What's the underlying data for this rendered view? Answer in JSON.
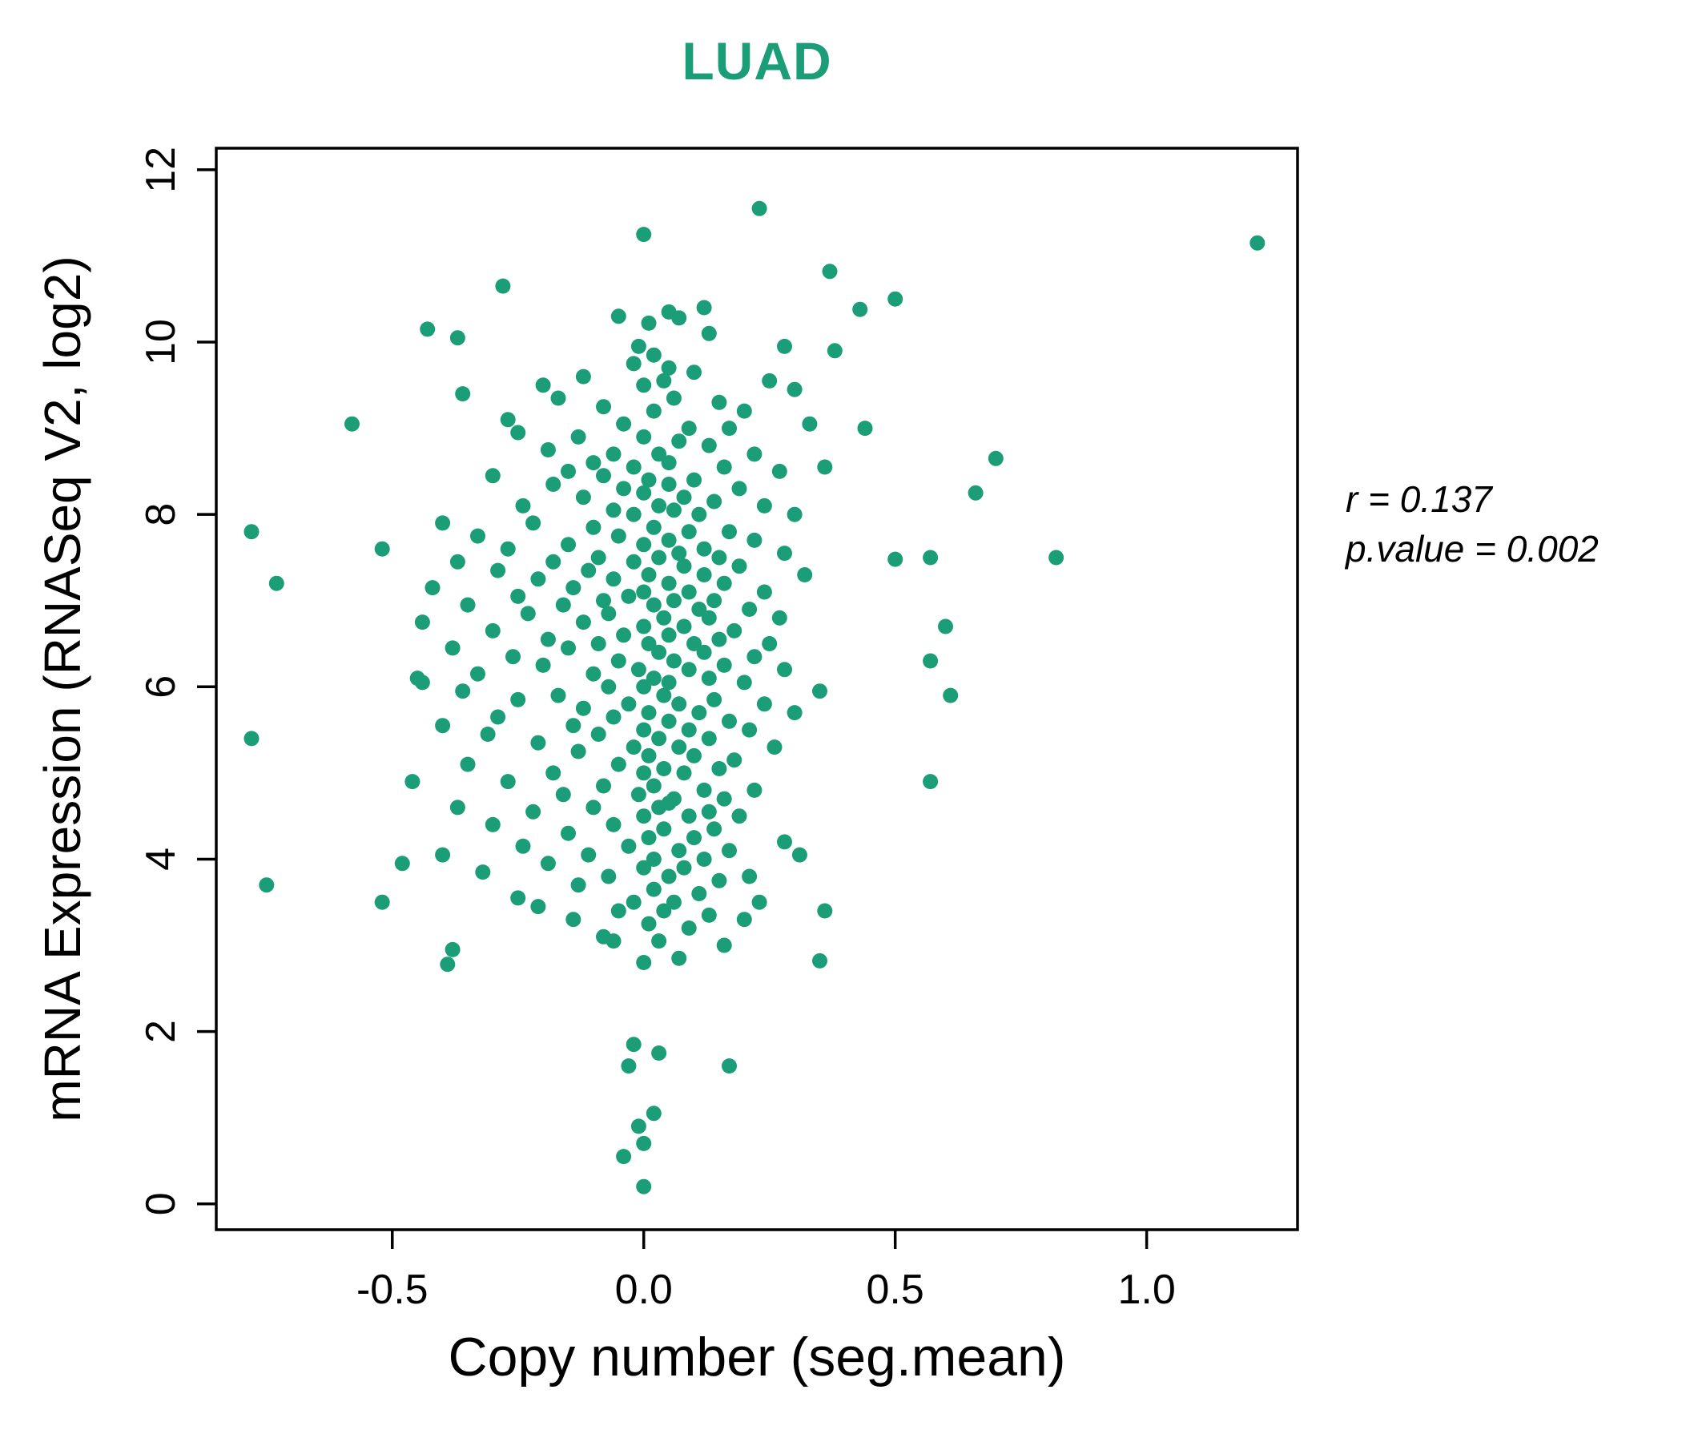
{
  "title": "LUAD",
  "annotation": {
    "line1": "r = 0.137",
    "line2": "p.value = 0.002"
  },
  "chart_data": {
    "type": "scatter",
    "title": "LUAD",
    "xlabel": "Copy number (seg.mean)",
    "ylabel": "mRNA Expression (RNASeq V2, log2)",
    "xlim": [
      -0.85,
      1.3
    ],
    "ylim": [
      -0.3,
      12.25
    ],
    "x_ticks": [
      -0.5,
      0.0,
      0.5,
      1.0
    ],
    "x_tick_labels": [
      "-0.5",
      "0.0",
      "0.5",
      "1.0"
    ],
    "y_ticks": [
      0,
      2,
      4,
      6,
      8,
      10,
      12
    ],
    "y_tick_labels": [
      "0",
      "2",
      "4",
      "6",
      "8",
      "10",
      "12"
    ],
    "grid": false,
    "legend": "none",
    "point_color": "#1B9E77",
    "title_color": "#1B9E77",
    "stats": {
      "r": 0.137,
      "p_value": 0.002
    },
    "points": [
      [
        0.23,
        11.55
      ],
      [
        0.0,
        11.25
      ],
      [
        1.22,
        11.15
      ],
      [
        0.37,
        10.82
      ],
      [
        -0.28,
        10.65
      ],
      [
        0.5,
        10.5
      ],
      [
        0.43,
        10.38
      ],
      [
        0.12,
        10.4
      ],
      [
        0.05,
        10.35
      ],
      [
        -0.05,
        10.3
      ],
      [
        0.07,
        10.28
      ],
      [
        -0.43,
        10.15
      ],
      [
        -0.37,
        10.05
      ],
      [
        0.01,
        10.22
      ],
      [
        0.13,
        10.1
      ],
      [
        0.28,
        9.95
      ],
      [
        0.38,
        9.9
      ],
      [
        -0.01,
        9.95
      ],
      [
        0.02,
        9.85
      ],
      [
        -0.02,
        9.75
      ],
      [
        0.05,
        9.7
      ],
      [
        0.1,
        9.65
      ],
      [
        -0.12,
        9.6
      ],
      [
        0.04,
        9.55
      ],
      [
        0.25,
        9.55
      ],
      [
        -0.2,
        9.5
      ],
      [
        0.0,
        9.5
      ],
      [
        0.3,
        9.45
      ],
      [
        -0.36,
        9.4
      ],
      [
        -0.17,
        9.35
      ],
      [
        0.06,
        9.35
      ],
      [
        0.15,
        9.3
      ],
      [
        -0.08,
        9.25
      ],
      [
        0.02,
        9.2
      ],
      [
        0.2,
        9.2
      ],
      [
        -0.27,
        9.1
      ],
      [
        -0.58,
        9.05
      ],
      [
        -0.04,
        9.05
      ],
      [
        0.09,
        9.0
      ],
      [
        0.17,
        9.0
      ],
      [
        0.33,
        9.05
      ],
      [
        0.44,
        9.0
      ],
      [
        -0.25,
        8.95
      ],
      [
        -0.13,
        8.9
      ],
      [
        0.0,
        8.9
      ],
      [
        0.07,
        8.85
      ],
      [
        0.13,
        8.8
      ],
      [
        -0.19,
        8.75
      ],
      [
        -0.06,
        8.7
      ],
      [
        0.03,
        8.7
      ],
      [
        0.22,
        8.7
      ],
      [
        0.7,
        8.65
      ],
      [
        -0.1,
        8.6
      ],
      [
        0.05,
        8.6
      ],
      [
        0.16,
        8.55
      ],
      [
        -0.02,
        8.55
      ],
      [
        0.27,
        8.5
      ],
      [
        -0.15,
        8.5
      ],
      [
        0.36,
        8.55
      ],
      [
        -0.3,
        8.45
      ],
      [
        -0.08,
        8.45
      ],
      [
        0.01,
        8.4
      ],
      [
        0.1,
        8.4
      ],
      [
        -0.18,
        8.35
      ],
      [
        0.05,
        8.35
      ],
      [
        0.19,
        8.3
      ],
      [
        0.66,
        8.25
      ],
      [
        -0.04,
        8.3
      ],
      [
        0.0,
        8.25
      ],
      [
        0.08,
        8.2
      ],
      [
        -0.12,
        8.2
      ],
      [
        0.14,
        8.15
      ],
      [
        -0.24,
        8.1
      ],
      [
        0.03,
        8.1
      ],
      [
        0.24,
        8.1
      ],
      [
        -0.06,
        8.05
      ],
      [
        0.06,
        8.05
      ],
      [
        0.3,
        8.0
      ],
      [
        -0.02,
        8.0
      ],
      [
        0.11,
        8.0
      ],
      [
        -0.78,
        7.8
      ],
      [
        -0.4,
        7.9
      ],
      [
        -0.22,
        7.9
      ],
      [
        -0.1,
        7.85
      ],
      [
        0.02,
        7.85
      ],
      [
        0.09,
        7.8
      ],
      [
        0.17,
        7.8
      ],
      [
        -0.33,
        7.75
      ],
      [
        -0.05,
        7.75
      ],
      [
        0.05,
        7.7
      ],
      [
        0.22,
        7.7
      ],
      [
        -0.15,
        7.65
      ],
      [
        0.0,
        7.65
      ],
      [
        0.12,
        7.6
      ],
      [
        -0.52,
        7.6
      ],
      [
        -0.27,
        7.6
      ],
      [
        0.07,
        7.55
      ],
      [
        0.28,
        7.55
      ],
      [
        -0.09,
        7.5
      ],
      [
        0.82,
        7.5
      ],
      [
        0.57,
        7.5
      ],
      [
        0.5,
        7.48
      ],
      [
        0.03,
        7.5
      ],
      [
        0.15,
        7.5
      ],
      [
        -0.73,
        7.2
      ],
      [
        -0.37,
        7.45
      ],
      [
        -0.18,
        7.45
      ],
      [
        -0.02,
        7.45
      ],
      [
        0.08,
        7.4
      ],
      [
        0.19,
        7.4
      ],
      [
        -0.29,
        7.35
      ],
      [
        -0.11,
        7.35
      ],
      [
        0.01,
        7.3
      ],
      [
        0.12,
        7.3
      ],
      [
        0.32,
        7.3
      ],
      [
        -0.21,
        7.25
      ],
      [
        -0.06,
        7.25
      ],
      [
        0.05,
        7.2
      ],
      [
        0.16,
        7.2
      ],
      [
        -0.42,
        7.15
      ],
      [
        -0.14,
        7.15
      ],
      [
        0.0,
        7.1
      ],
      [
        0.09,
        7.1
      ],
      [
        0.24,
        7.1
      ],
      [
        -0.25,
        7.05
      ],
      [
        -0.03,
        7.05
      ],
      [
        0.06,
        7.0
      ],
      [
        0.14,
        7.0
      ],
      [
        -0.08,
        7.0
      ],
      [
        -0.35,
        6.95
      ],
      [
        -0.16,
        6.95
      ],
      [
        0.02,
        6.95
      ],
      [
        0.11,
        6.9
      ],
      [
        0.21,
        6.9
      ],
      [
        -0.23,
        6.85
      ],
      [
        -0.07,
        6.85
      ],
      [
        0.04,
        6.8
      ],
      [
        0.13,
        6.8
      ],
      [
        0.27,
        6.8
      ],
      [
        -0.44,
        6.75
      ],
      [
        -0.12,
        6.75
      ],
      [
        0.0,
        6.7
      ],
      [
        0.6,
        6.7
      ],
      [
        0.08,
        6.7
      ],
      [
        0.18,
        6.65
      ],
      [
        -0.3,
        6.65
      ],
      [
        -0.04,
        6.6
      ],
      [
        0.05,
        6.6
      ],
      [
        0.15,
        6.55
      ],
      [
        -0.19,
        6.55
      ],
      [
        0.01,
        6.5
      ],
      [
        0.1,
        6.5
      ],
      [
        0.25,
        6.5
      ],
      [
        -0.09,
        6.5
      ],
      [
        -0.38,
        6.45
      ],
      [
        -0.15,
        6.45
      ],
      [
        0.03,
        6.4
      ],
      [
        0.12,
        6.4
      ],
      [
        0.22,
        6.35
      ],
      [
        -0.26,
        6.35
      ],
      [
        -0.05,
        6.3
      ],
      [
        0.06,
        6.3
      ],
      [
        0.57,
        6.3
      ],
      [
        0.16,
        6.25
      ],
      [
        -0.2,
        6.25
      ],
      [
        -0.01,
        6.2
      ],
      [
        0.09,
        6.2
      ],
      [
        0.28,
        6.2
      ],
      [
        -0.33,
        6.15
      ],
      [
        -0.1,
        6.15
      ],
      [
        0.02,
        6.1
      ],
      [
        0.13,
        6.1
      ],
      [
        -0.45,
        6.1
      ],
      [
        -0.44,
        6.05
      ],
      [
        0.05,
        6.05
      ],
      [
        0.2,
        6.05
      ],
      [
        -0.07,
        6.0
      ],
      [
        0.0,
        6.0
      ],
      [
        0.35,
        5.95
      ],
      [
        0.61,
        5.9
      ],
      [
        -0.36,
        5.95
      ],
      [
        -0.17,
        5.9
      ],
      [
        0.04,
        5.9
      ],
      [
        0.14,
        5.85
      ],
      [
        -0.25,
        5.85
      ],
      [
        -0.03,
        5.8
      ],
      [
        0.07,
        5.8
      ],
      [
        0.24,
        5.8
      ],
      [
        -0.12,
        5.75
      ],
      [
        0.01,
        5.7
      ],
      [
        0.11,
        5.7
      ],
      [
        0.3,
        5.7
      ],
      [
        -0.29,
        5.65
      ],
      [
        -0.06,
        5.65
      ],
      [
        0.05,
        5.6
      ],
      [
        0.17,
        5.6
      ],
      [
        -0.4,
        5.55
      ],
      [
        -0.14,
        5.55
      ],
      [
        0.0,
        5.5
      ],
      [
        0.09,
        5.5
      ],
      [
        0.21,
        5.5
      ],
      [
        -0.78,
        5.4
      ],
      [
        -0.31,
        5.45
      ],
      [
        -0.09,
        5.45
      ],
      [
        0.03,
        5.4
      ],
      [
        0.13,
        5.4
      ],
      [
        -0.21,
        5.35
      ],
      [
        -0.02,
        5.3
      ],
      [
        0.07,
        5.3
      ],
      [
        0.26,
        5.3
      ],
      [
        -0.13,
        5.25
      ],
      [
        0.01,
        5.2
      ],
      [
        0.1,
        5.2
      ],
      [
        0.18,
        5.15
      ],
      [
        -0.35,
        5.1
      ],
      [
        -0.05,
        5.1
      ],
      [
        0.04,
        5.05
      ],
      [
        0.15,
        5.05
      ],
      [
        -0.18,
        5.0
      ],
      [
        0.0,
        5.0
      ],
      [
        0.08,
        5.0
      ],
      [
        -0.46,
        4.9
      ],
      [
        0.57,
        4.9
      ],
      [
        -0.27,
        4.9
      ],
      [
        -0.08,
        4.85
      ],
      [
        0.02,
        4.85
      ],
      [
        0.12,
        4.8
      ],
      [
        0.22,
        4.8
      ],
      [
        -0.16,
        4.75
      ],
      [
        -0.01,
        4.75
      ],
      [
        0.06,
        4.7
      ],
      [
        0.16,
        4.7
      ],
      [
        0.05,
        4.65
      ],
      [
        -0.37,
        4.6
      ],
      [
        -0.1,
        4.6
      ],
      [
        0.03,
        4.6
      ],
      [
        0.13,
        4.55
      ],
      [
        -0.22,
        4.55
      ],
      [
        0.0,
        4.5
      ],
      [
        0.09,
        4.5
      ],
      [
        0.19,
        4.5
      ],
      [
        -0.3,
        4.4
      ],
      [
        -0.06,
        4.4
      ],
      [
        0.04,
        4.35
      ],
      [
        0.14,
        4.35
      ],
      [
        -0.15,
        4.3
      ],
      [
        0.01,
        4.25
      ],
      [
        0.1,
        4.25
      ],
      [
        0.28,
        4.2
      ],
      [
        -0.24,
        4.15
      ],
      [
        -0.03,
        4.15
      ],
      [
        0.07,
        4.1
      ],
      [
        0.17,
        4.1
      ],
      [
        -0.4,
        4.05
      ],
      [
        -0.11,
        4.05
      ],
      [
        0.02,
        4.0
      ],
      [
        0.12,
        4.0
      ],
      [
        0.31,
        4.05
      ],
      [
        -0.48,
        3.95
      ],
      [
        -0.19,
        3.95
      ],
      [
        0.0,
        3.9
      ],
      [
        0.08,
        3.9
      ],
      [
        -0.32,
        3.85
      ],
      [
        -0.07,
        3.8
      ],
      [
        0.05,
        3.8
      ],
      [
        0.15,
        3.75
      ],
      [
        0.21,
        3.8
      ],
      [
        -0.75,
        3.7
      ],
      [
        -0.13,
        3.7
      ],
      [
        0.02,
        3.65
      ],
      [
        0.11,
        3.6
      ],
      [
        -0.52,
        3.5
      ],
      [
        -0.25,
        3.55
      ],
      [
        -0.02,
        3.5
      ],
      [
        0.06,
        3.5
      ],
      [
        0.23,
        3.5
      ],
      [
        -0.21,
        3.45
      ],
      [
        -0.05,
        3.4
      ],
      [
        0.04,
        3.4
      ],
      [
        0.36,
        3.4
      ],
      [
        0.13,
        3.35
      ],
      [
        -0.14,
        3.3
      ],
      [
        0.2,
        3.3
      ],
      [
        0.01,
        3.25
      ],
      [
        0.09,
        3.2
      ],
      [
        -0.08,
        3.1
      ],
      [
        -0.06,
        3.05
      ],
      [
        0.03,
        3.05
      ],
      [
        0.16,
        3.0
      ],
      [
        -0.38,
        2.95
      ],
      [
        -0.39,
        2.78
      ],
      [
        0.07,
        2.85
      ],
      [
        0.35,
        2.82
      ],
      [
        0.0,
        2.8
      ],
      [
        -0.02,
        1.85
      ],
      [
        0.03,
        1.75
      ],
      [
        -0.03,
        1.6
      ],
      [
        0.17,
        1.6
      ],
      [
        0.02,
        1.05
      ],
      [
        -0.01,
        0.9
      ],
      [
        0.0,
        0.7
      ],
      [
        -0.04,
        0.55
      ],
      [
        0.0,
        0.2
      ]
    ]
  }
}
